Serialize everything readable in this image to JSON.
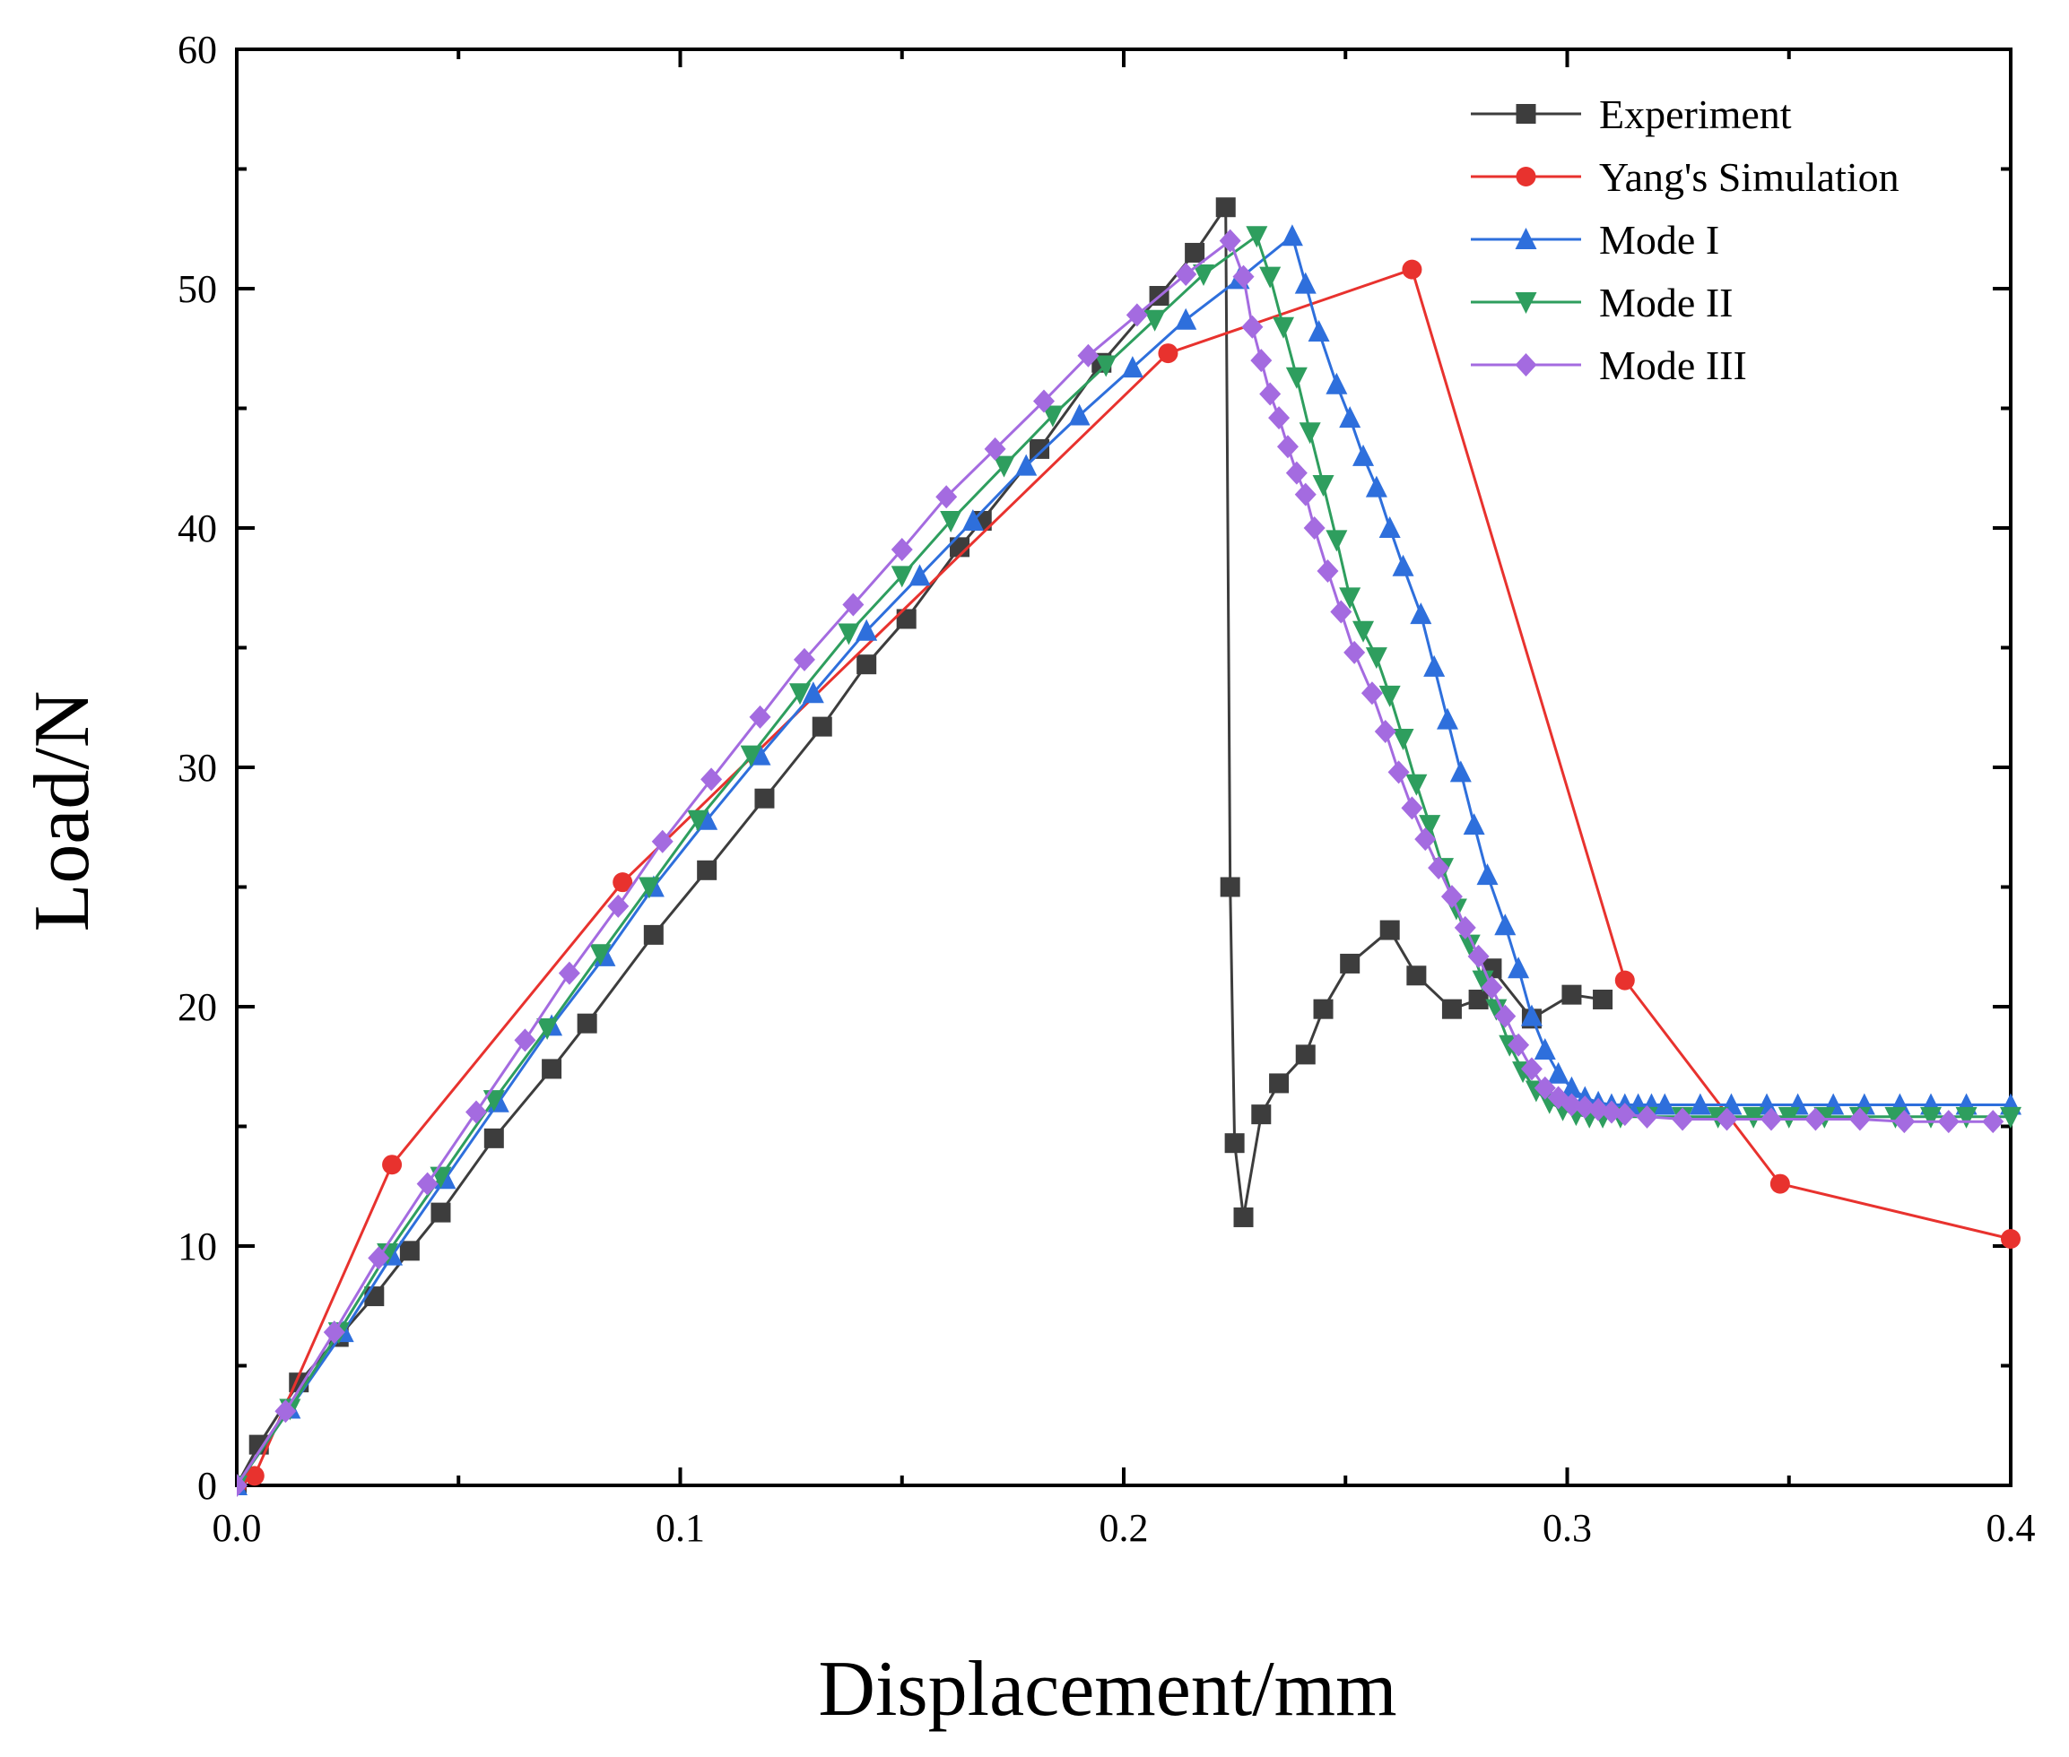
{
  "chart_data": {
    "type": "line",
    "title": "",
    "xlabel": "Displacement/mm",
    "ylabel": "Load/N",
    "xlim": [
      0.0,
      0.4
    ],
    "ylim": [
      0,
      60
    ],
    "xticks": [
      0.0,
      0.1,
      0.2,
      0.3,
      0.4
    ],
    "xtick_labels": [
      "0.0",
      "0.1",
      "0.2",
      "0.3",
      "0.4"
    ],
    "yticks": [
      0,
      10,
      20,
      30,
      40,
      50,
      60
    ],
    "ytick_labels": [
      "0",
      "10",
      "20",
      "30",
      "40",
      "50",
      "60"
    ],
    "grid": false,
    "legend_position": "top-right",
    "series": [
      {
        "name": "Experiment",
        "color": "#3d3d3d",
        "marker": "square",
        "x": [
          0.0,
          0.005,
          0.014,
          0.023,
          0.031,
          0.039,
          0.046,
          0.058,
          0.071,
          0.079,
          0.094,
          0.106,
          0.119,
          0.132,
          0.142,
          0.151,
          0.163,
          0.168,
          0.181,
          0.195,
          0.208,
          0.216,
          0.223,
          0.224,
          0.225,
          0.227,
          0.231,
          0.235,
          0.241,
          0.245,
          0.251,
          0.26,
          0.266,
          0.274,
          0.28,
          0.283,
          0.292,
          0.301,
          0.308
        ],
        "y": [
          0.0,
          1.7,
          4.3,
          6.2,
          7.9,
          9.8,
          11.4,
          14.5,
          17.4,
          19.3,
          23.0,
          25.7,
          28.7,
          31.7,
          34.3,
          36.2,
          39.2,
          40.3,
          43.3,
          46.9,
          49.7,
          51.5,
          53.4,
          25.0,
          14.3,
          11.2,
          15.5,
          16.8,
          18.0,
          19.9,
          21.8,
          23.2,
          21.3,
          19.9,
          20.3,
          21.6,
          19.5,
          20.5,
          20.3
        ]
      },
      {
        "name": "Yang's Simulation",
        "color": "#e8322e",
        "marker": "circle",
        "x": [
          0.0,
          0.004,
          0.035,
          0.087,
          0.21,
          0.265,
          0.313,
          0.348,
          0.4
        ],
        "y": [
          0.0,
          0.4,
          13.4,
          25.2,
          47.3,
          50.8,
          21.1,
          12.6,
          10.3
        ]
      },
      {
        "name": "Mode I",
        "color": "#2e6fdc",
        "marker": "triangle-up",
        "x": [
          0.0,
          0.012,
          0.024,
          0.035,
          0.047,
          0.059,
          0.071,
          0.083,
          0.094,
          0.106,
          0.118,
          0.13,
          0.142,
          0.154,
          0.166,
          0.178,
          0.19,
          0.202,
          0.214,
          0.226,
          0.238,
          0.241,
          0.244,
          0.248,
          0.251,
          0.254,
          0.257,
          0.26,
          0.263,
          0.267,
          0.27,
          0.273,
          0.276,
          0.279,
          0.282,
          0.286,
          0.289,
          0.292,
          0.295,
          0.298,
          0.301,
          0.304,
          0.307,
          0.31,
          0.313,
          0.316,
          0.319,
          0.322,
          0.33,
          0.337,
          0.345,
          0.352,
          0.36,
          0.367,
          0.375,
          0.382,
          0.39,
          0.4
        ],
        "y": [
          0.0,
          3.2,
          6.4,
          9.6,
          12.8,
          16.0,
          19.2,
          22.1,
          25.0,
          27.8,
          30.5,
          33.1,
          35.7,
          38.0,
          40.3,
          42.6,
          44.7,
          46.7,
          48.7,
          50.4,
          52.2,
          50.2,
          48.2,
          46.0,
          44.6,
          43.0,
          41.7,
          40.0,
          38.4,
          36.4,
          34.2,
          32.0,
          29.8,
          27.6,
          25.5,
          23.4,
          21.6,
          19.6,
          18.2,
          17.2,
          16.6,
          16.2,
          16.0,
          15.9,
          15.9,
          15.9,
          15.9,
          15.9,
          15.9,
          15.9,
          15.9,
          15.9,
          15.9,
          15.9,
          15.9,
          15.9,
          15.9,
          15.9
        ]
      },
      {
        "name": "Mode II",
        "color": "#2e9e5e",
        "marker": "triangle-down",
        "x": [
          0.0,
          0.012,
          0.023,
          0.034,
          0.046,
          0.058,
          0.07,
          0.082,
          0.093,
          0.104,
          0.116,
          0.127,
          0.138,
          0.15,
          0.161,
          0.173,
          0.184,
          0.196,
          0.207,
          0.218,
          0.23,
          0.233,
          0.236,
          0.239,
          0.242,
          0.245,
          0.248,
          0.251,
          0.254,
          0.257,
          0.26,
          0.263,
          0.266,
          0.269,
          0.272,
          0.275,
          0.278,
          0.281,
          0.284,
          0.287,
          0.29,
          0.293,
          0.296,
          0.299,
          0.302,
          0.305,
          0.308,
          0.312,
          0.318,
          0.326,
          0.334,
          0.342,
          0.35,
          0.358,
          0.366,
          0.374,
          0.382,
          0.39,
          0.4
        ],
        "y": [
          0.0,
          3.2,
          6.4,
          9.7,
          12.9,
          16.1,
          19.1,
          22.2,
          25.0,
          27.8,
          30.5,
          33.1,
          35.6,
          38.0,
          40.3,
          42.6,
          44.7,
          46.8,
          48.7,
          50.6,
          52.2,
          50.5,
          48.4,
          46.3,
          44.0,
          41.8,
          39.5,
          37.1,
          35.7,
          34.6,
          33.0,
          31.2,
          29.3,
          27.6,
          25.8,
          24.1,
          22.6,
          21.1,
          19.9,
          18.4,
          17.3,
          16.5,
          16.0,
          15.7,
          15.5,
          15.4,
          15.4,
          15.4,
          15.4,
          15.4,
          15.4,
          15.4,
          15.4,
          15.4,
          15.4,
          15.4,
          15.4,
          15.4,
          15.4
        ]
      },
      {
        "name": "Mode III",
        "color": "#a46be0",
        "marker": "diamond",
        "x": [
          0.0,
          0.011,
          0.022,
          0.032,
          0.043,
          0.054,
          0.065,
          0.075,
          0.086,
          0.096,
          0.107,
          0.118,
          0.128,
          0.139,
          0.15,
          0.16,
          0.171,
          0.182,
          0.192,
          0.203,
          0.214,
          0.224,
          0.227,
          0.229,
          0.231,
          0.233,
          0.235,
          0.237,
          0.239,
          0.241,
          0.243,
          0.246,
          0.249,
          0.252,
          0.256,
          0.259,
          0.262,
          0.265,
          0.268,
          0.271,
          0.274,
          0.277,
          0.28,
          0.283,
          0.286,
          0.289,
          0.292,
          0.295,
          0.298,
          0.301,
          0.304,
          0.307,
          0.31,
          0.313,
          0.318,
          0.326,
          0.336,
          0.346,
          0.356,
          0.366,
          0.376,
          0.386,
          0.396
        ],
        "y": [
          0.0,
          3.1,
          6.4,
          9.5,
          12.6,
          15.6,
          18.6,
          21.4,
          24.2,
          26.9,
          29.5,
          32.1,
          34.5,
          36.8,
          39.1,
          41.3,
          43.3,
          45.3,
          47.2,
          48.9,
          50.6,
          52.0,
          50.5,
          48.4,
          47.0,
          45.6,
          44.6,
          43.4,
          42.3,
          41.4,
          40.0,
          38.2,
          36.5,
          34.8,
          33.1,
          31.5,
          29.8,
          28.3,
          27.0,
          25.8,
          24.6,
          23.3,
          22.1,
          20.8,
          19.6,
          18.4,
          17.4,
          16.6,
          16.2,
          15.9,
          15.8,
          15.7,
          15.6,
          15.5,
          15.4,
          15.3,
          15.3,
          15.3,
          15.3,
          15.3,
          15.2,
          15.2,
          15.2
        ]
      }
    ]
  }
}
